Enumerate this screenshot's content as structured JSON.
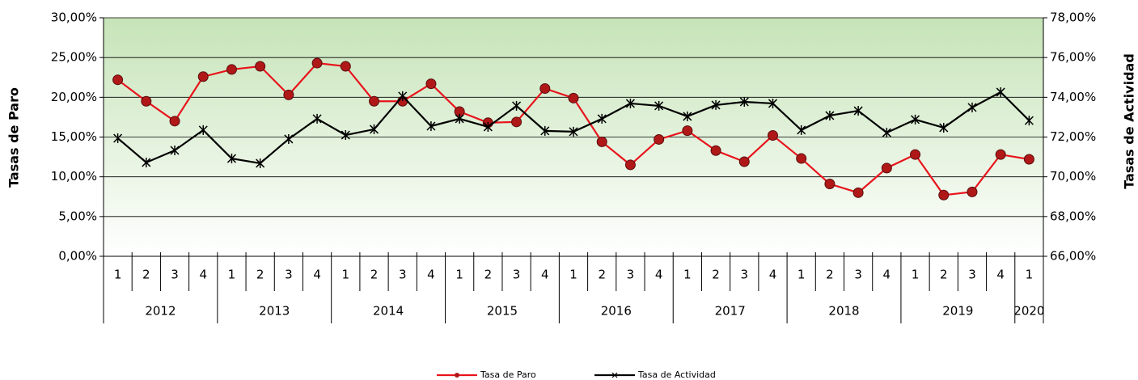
{
  "chart_data": {
    "type": "line",
    "y_label": "Tasas de Paro",
    "y2_label": "Tasas de Actividad",
    "years": [
      "2012",
      "2013",
      "2014",
      "2015",
      "2016",
      "2017",
      "2018",
      "2019",
      "2020"
    ],
    "quarters": [
      "1",
      "2",
      "3",
      "4",
      "1",
      "2",
      "3",
      "4",
      "1",
      "2",
      "3",
      "4",
      "1",
      "2",
      "3",
      "4",
      "1",
      "2",
      "3",
      "4",
      "1",
      "2",
      "3",
      "4",
      "1",
      "2",
      "3",
      "4",
      "1",
      "2",
      "3",
      "4",
      "1"
    ],
    "series": [
      {
        "name": "Tasa de Paro",
        "color": "#e8141c",
        "marker_color": "#b01818",
        "axis": "y",
        "values": [
          22.2,
          19.5,
          17.0,
          22.6,
          23.5,
          23.9,
          20.3,
          24.3,
          23.9,
          19.5,
          19.5,
          21.7,
          18.2,
          16.8,
          16.9,
          21.1,
          19.9,
          14.4,
          11.5,
          14.7,
          15.8,
          13.3,
          11.9,
          15.2,
          12.3,
          9.1,
          8.0,
          11.1,
          12.8,
          7.7,
          8.1,
          12.8,
          12.2
        ]
      },
      {
        "name": "Tasa de Actividad",
        "color": "#000000",
        "marker_color": "#000000",
        "axis": "y2",
        "values": [
          71.94,
          70.72,
          71.33,
          72.35,
          70.92,
          70.68,
          71.9,
          72.92,
          72.1,
          72.39,
          74.06,
          72.55,
          72.92,
          72.51,
          73.57,
          72.31,
          72.27,
          72.92,
          73.69,
          73.57,
          73.04,
          73.61,
          73.77,
          73.69,
          72.35,
          73.08,
          73.32,
          72.22,
          72.88,
          72.47,
          73.49,
          74.26,
          72.83
        ]
      }
    ],
    "ylim": [
      0,
      30
    ],
    "yticks": [
      {
        "value": 0,
        "label": "0,00%"
      },
      {
        "value": 5,
        "label": "5,00%"
      },
      {
        "value": 10,
        "label": "10,00%"
      },
      {
        "value": 15,
        "label": "15,00%"
      },
      {
        "value": 20,
        "label": "20,00%"
      },
      {
        "value": 25,
        "label": "25,00%"
      },
      {
        "value": 30,
        "label": "30,00%"
      }
    ],
    "y2lim": [
      66,
      78
    ],
    "y2ticks": [
      {
        "value": 66,
        "label": "66,00%"
      },
      {
        "value": 68,
        "label": "68,00%"
      },
      {
        "value": 70,
        "label": "70,00%"
      },
      {
        "value": 72,
        "label": "72,00%"
      },
      {
        "value": 74,
        "label": "74,00%"
      },
      {
        "value": 76,
        "label": "76,00%"
      },
      {
        "value": 78,
        "label": "78,00%"
      }
    ],
    "grid": true,
    "legend": "bottom"
  }
}
